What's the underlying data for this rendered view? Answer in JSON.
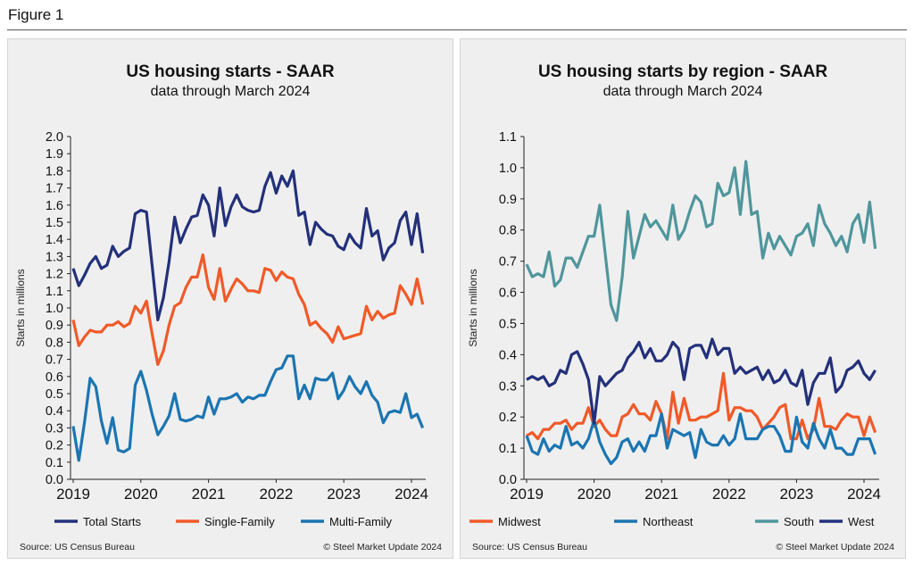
{
  "figure_label": "Figure 1",
  "chart_data": [
    {
      "type": "line",
      "title": "US housing starts - SAAR",
      "subtitle": "data through March 2024",
      "ylabel": "Starts in millions",
      "xlabel": "",
      "ylim": [
        0,
        2.0
      ],
      "yticks": [
        "0.0",
        "0.1",
        "0.2",
        "0.3",
        "0.4",
        "0.5",
        "0.6",
        "0.7",
        "0.8",
        "0.9",
        "1.0",
        "1.1",
        "1.2",
        "1.3",
        "1.4",
        "1.5",
        "1.6",
        "1.7",
        "1.8",
        "1.9",
        "2.0"
      ],
      "xticks": [
        "2019",
        "2020",
        "2021",
        "2022",
        "2023",
        "2024"
      ],
      "x_start": "2019-01",
      "x_end": "2024-03",
      "frequency": "monthly",
      "legend_position": "bottom",
      "source": "Source: US Census Bureau",
      "copyright": "© Steel Market Update 2024",
      "series": [
        {
          "name": "Total Starts",
          "color": "#23307a",
          "values": [
            1.23,
            1.13,
            1.19,
            1.26,
            1.3,
            1.23,
            1.25,
            1.36,
            1.3,
            1.33,
            1.35,
            1.55,
            1.57,
            1.56,
            1.25,
            0.93,
            1.06,
            1.27,
            1.53,
            1.38,
            1.46,
            1.53,
            1.54,
            1.66,
            1.6,
            1.42,
            1.7,
            1.48,
            1.59,
            1.66,
            1.59,
            1.57,
            1.56,
            1.57,
            1.71,
            1.79,
            1.67,
            1.77,
            1.71,
            1.8,
            1.54,
            1.56,
            1.37,
            1.5,
            1.46,
            1.43,
            1.42,
            1.36,
            1.34,
            1.43,
            1.38,
            1.35,
            1.58,
            1.42,
            1.45,
            1.28,
            1.35,
            1.38,
            1.51,
            1.56,
            1.37,
            1.55,
            1.32
          ]
        },
        {
          "name": "Single-Family",
          "color": "#f05a28",
          "values": [
            0.93,
            0.78,
            0.83,
            0.87,
            0.86,
            0.86,
            0.9,
            0.9,
            0.92,
            0.89,
            0.91,
            1.01,
            0.97,
            1.04,
            0.85,
            0.67,
            0.75,
            0.9,
            1.01,
            1.03,
            1.12,
            1.18,
            1.18,
            1.31,
            1.12,
            1.05,
            1.23,
            1.04,
            1.11,
            1.17,
            1.14,
            1.1,
            1.1,
            1.09,
            1.23,
            1.22,
            1.16,
            1.21,
            1.18,
            1.17,
            1.08,
            1.02,
            0.9,
            0.92,
            0.88,
            0.85,
            0.8,
            0.89,
            0.82,
            0.83,
            0.84,
            0.85,
            1.01,
            0.93,
            0.98,
            0.94,
            0.96,
            0.97,
            1.13,
            1.08,
            1.02,
            1.17,
            1.02
          ]
        },
        {
          "name": "Multi-Family",
          "color": "#1b75b1",
          "values": [
            0.31,
            0.11,
            0.33,
            0.59,
            0.54,
            0.34,
            0.21,
            0.36,
            0.17,
            0.16,
            0.18,
            0.55,
            0.63,
            0.52,
            0.38,
            0.26,
            0.31,
            0.37,
            0.5,
            0.35,
            0.34,
            0.35,
            0.37,
            0.36,
            0.48,
            0.38,
            0.47,
            0.47,
            0.48,
            0.5,
            0.45,
            0.48,
            0.47,
            0.49,
            0.49,
            0.57,
            0.64,
            0.65,
            0.72,
            0.72,
            0.47,
            0.55,
            0.47,
            0.59,
            0.58,
            0.58,
            0.62,
            0.47,
            0.52,
            0.6,
            0.54,
            0.5,
            0.57,
            0.49,
            0.45,
            0.33,
            0.39,
            0.4,
            0.39,
            0.5,
            0.36,
            0.38,
            0.3
          ]
        }
      ]
    },
    {
      "type": "line",
      "title": "US housing starts by region - SAAR",
      "subtitle": "data through March 2024",
      "ylabel": "Starts in millions",
      "xlabel": "",
      "ylim": [
        0,
        1.1
      ],
      "yticks": [
        "0.0",
        "0.1",
        "0.2",
        "0.3",
        "0.4",
        "0.5",
        "0.6",
        "0.7",
        "0.8",
        "0.9",
        "1.0",
        "1.1"
      ],
      "xticks": [
        "2019",
        "2020",
        "2021",
        "2022",
        "2023",
        "2024"
      ],
      "x_start": "2019-01",
      "x_end": "2024-03",
      "frequency": "monthly",
      "legend_position": "bottom",
      "source": "Source: US Census Bureau",
      "copyright": "© Steel Market Update 2024",
      "series": [
        {
          "name": "Midwest",
          "color": "#f05a28",
          "values": [
            0.14,
            0.15,
            0.13,
            0.16,
            0.16,
            0.18,
            0.18,
            0.19,
            0.16,
            0.18,
            0.18,
            0.23,
            0.17,
            0.19,
            0.16,
            0.14,
            0.14,
            0.2,
            0.21,
            0.24,
            0.21,
            0.21,
            0.19,
            0.25,
            0.21,
            0.13,
            0.28,
            0.18,
            0.26,
            0.19,
            0.19,
            0.2,
            0.2,
            0.21,
            0.22,
            0.34,
            0.19,
            0.23,
            0.23,
            0.22,
            0.22,
            0.2,
            0.16,
            0.18,
            0.2,
            0.23,
            0.24,
            0.13,
            0.13,
            0.19,
            0.13,
            0.16,
            0.26,
            0.17,
            0.17,
            0.16,
            0.19,
            0.21,
            0.2,
            0.2,
            0.14,
            0.2,
            0.15
          ]
        },
        {
          "name": "Northeast",
          "color": "#1b75b1",
          "values": [
            0.14,
            0.09,
            0.08,
            0.13,
            0.09,
            0.11,
            0.1,
            0.17,
            0.11,
            0.12,
            0.1,
            0.13,
            0.19,
            0.12,
            0.08,
            0.05,
            0.07,
            0.12,
            0.13,
            0.09,
            0.12,
            0.09,
            0.14,
            0.14,
            0.21,
            0.1,
            0.16,
            0.15,
            0.14,
            0.15,
            0.07,
            0.16,
            0.12,
            0.11,
            0.11,
            0.14,
            0.11,
            0.13,
            0.21,
            0.13,
            0.13,
            0.13,
            0.16,
            0.17,
            0.17,
            0.14,
            0.09,
            0.09,
            0.2,
            0.12,
            0.1,
            0.18,
            0.13,
            0.1,
            0.16,
            0.1,
            0.1,
            0.08,
            0.08,
            0.13,
            0.13,
            0.13,
            0.08
          ]
        },
        {
          "name": "South",
          "color": "#4f969c",
          "values": [
            0.69,
            0.65,
            0.66,
            0.65,
            0.73,
            0.62,
            0.64,
            0.71,
            0.71,
            0.68,
            0.73,
            0.78,
            0.78,
            0.88,
            0.72,
            0.56,
            0.51,
            0.65,
            0.86,
            0.71,
            0.78,
            0.85,
            0.81,
            0.83,
            0.8,
            0.77,
            0.88,
            0.77,
            0.8,
            0.86,
            0.91,
            0.89,
            0.81,
            0.82,
            0.95,
            0.91,
            0.92,
            1.0,
            0.85,
            1.02,
            0.85,
            0.86,
            0.71,
            0.79,
            0.74,
            0.78,
            0.75,
            0.72,
            0.78,
            0.79,
            0.82,
            0.75,
            0.88,
            0.82,
            0.79,
            0.75,
            0.78,
            0.73,
            0.82,
            0.85,
            0.76,
            0.89,
            0.74
          ]
        },
        {
          "name": "West",
          "color": "#23307a",
          "values": [
            0.32,
            0.33,
            0.32,
            0.33,
            0.3,
            0.31,
            0.35,
            0.34,
            0.4,
            0.41,
            0.37,
            0.32,
            0.18,
            0.33,
            0.3,
            0.32,
            0.34,
            0.35,
            0.39,
            0.41,
            0.44,
            0.39,
            0.42,
            0.38,
            0.38,
            0.4,
            0.44,
            0.42,
            0.32,
            0.42,
            0.43,
            0.43,
            0.39,
            0.45,
            0.4,
            0.42,
            0.42,
            0.34,
            0.36,
            0.34,
            0.35,
            0.36,
            0.32,
            0.35,
            0.31,
            0.32,
            0.35,
            0.31,
            0.3,
            0.35,
            0.24,
            0.31,
            0.34,
            0.34,
            0.39,
            0.28,
            0.3,
            0.35,
            0.36,
            0.38,
            0.34,
            0.32,
            0.35
          ]
        }
      ]
    }
  ]
}
